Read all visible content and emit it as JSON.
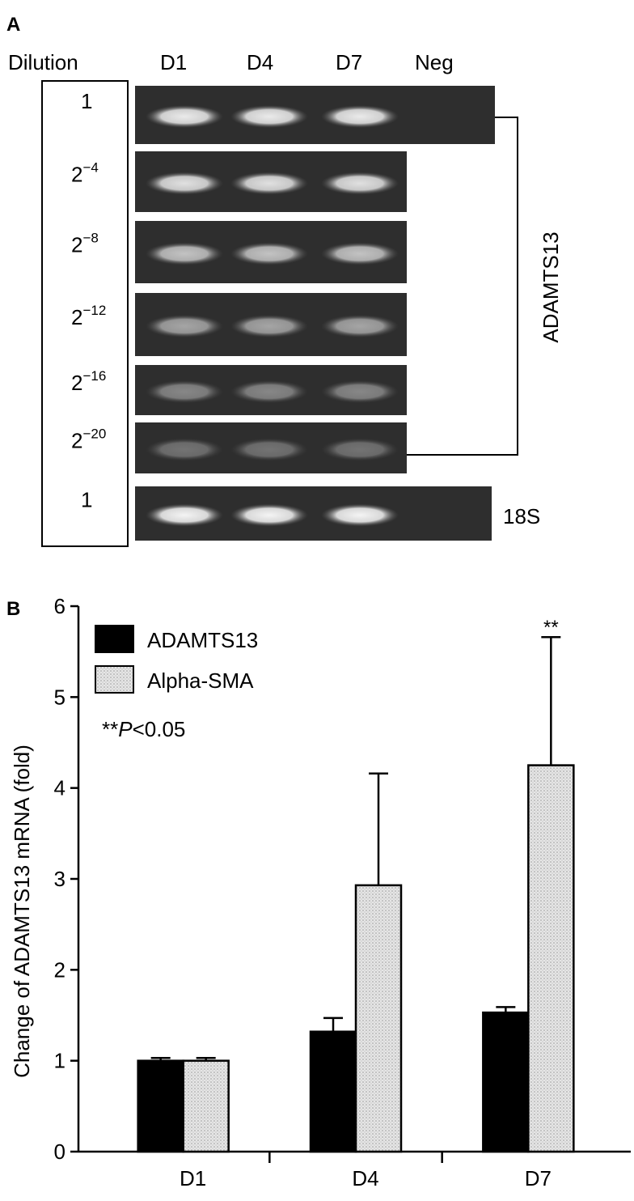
{
  "panel_a": {
    "label": "A",
    "header": [
      "Dilution",
      "D1",
      "D4",
      "D7",
      "Neg"
    ],
    "rows": [
      {
        "base": "1"
      },
      {
        "base": "2",
        "exponent": "−4"
      },
      {
        "base": "2",
        "exponent": "−8"
      },
      {
        "base": "2",
        "exponent": "−12"
      },
      {
        "base": "2",
        "exponent": "−16"
      },
      {
        "base": "2",
        "exponent": "−20"
      },
      {
        "base": "1"
      }
    ],
    "gene_label": "ADAMTS13",
    "control_label": "18S"
  },
  "chart_data": {
    "type": "bar",
    "panel_label": "B",
    "y_label": "Change of ADAMTS13 mRNA (fold)",
    "categories": [
      "D1",
      "D4",
      "D7"
    ],
    "series": [
      {
        "name": "ADAMTS13",
        "color": "#000000",
        "values": [
          1.0,
          1.32,
          1.53
        ],
        "errors": [
          0.03,
          0.15,
          0.06
        ]
      },
      {
        "name": "Alpha-SMA",
        "color": "#d9d9d9",
        "values": [
          1.0,
          2.93,
          4.25
        ],
        "errors": [
          0.03,
          1.23,
          1.41
        ]
      }
    ],
    "ylim": [
      0,
      6
    ],
    "yticks": [
      0,
      1,
      2,
      3,
      4,
      5,
      6
    ],
    "significance_marker": "**",
    "note": [
      "**",
      "P",
      "<0.05"
    ],
    "legend": "upper-left"
  }
}
